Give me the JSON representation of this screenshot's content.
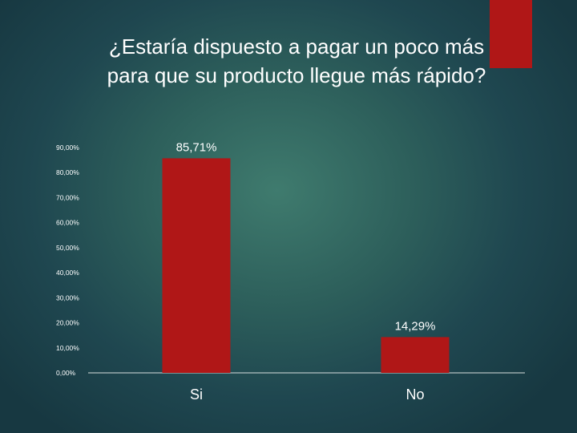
{
  "colors": {
    "bar": "#b01717",
    "accent": "#b01717",
    "text": "#ffffff"
  },
  "chart_data": {
    "type": "bar",
    "title_lines": [
      "¿Estaría dispuesto a pagar un poco más",
      "para que su producto llegue más rápido?"
    ],
    "categories": [
      "Si",
      "No"
    ],
    "values": [
      85.71,
      14.29
    ],
    "data_labels": [
      "85,71%",
      "14,29%"
    ],
    "y_ticks": [
      0,
      10,
      20,
      30,
      40,
      50,
      60,
      70,
      80,
      90
    ],
    "y_tick_labels": [
      "0,00%",
      "10,00%",
      "20,00%",
      "30,00%",
      "40,00%",
      "50,00%",
      "60,00%",
      "70,00%",
      "80,00%",
      "90,00%"
    ],
    "ylim": [
      0,
      90
    ],
    "grid": false,
    "legend": "none"
  }
}
